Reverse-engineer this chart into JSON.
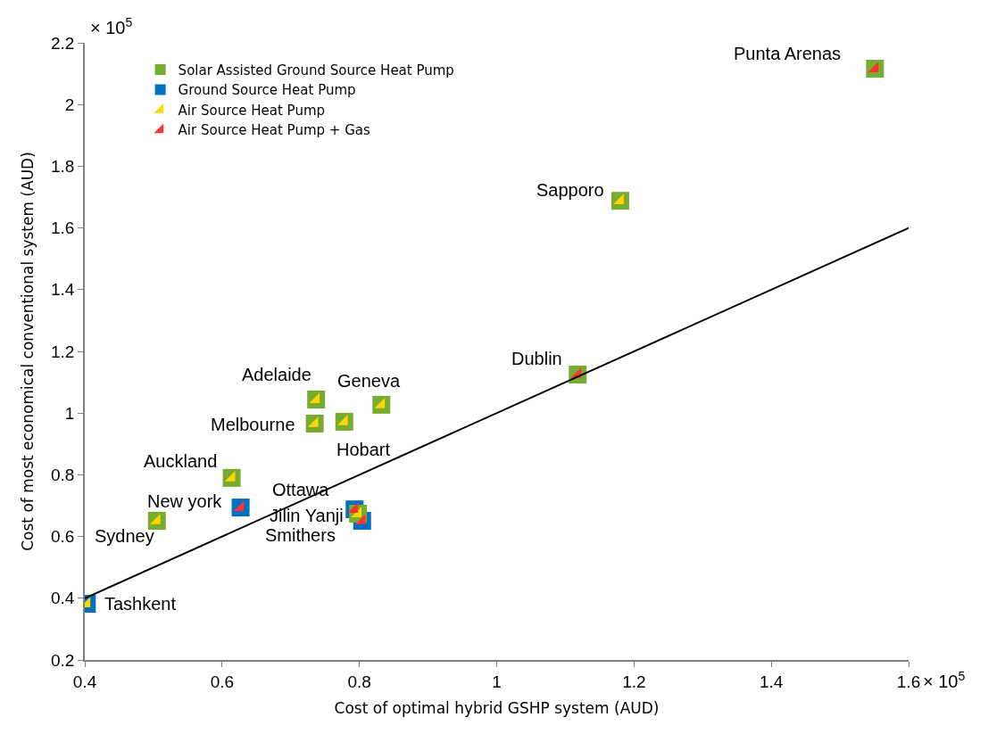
{
  "chart_data": {
    "type": "scatter",
    "xlabel": "Cost of optimal hybrid GSHP system (AUD)",
    "ylabel": "Cost of most economical conventional system (AUD)",
    "xlim": [
      0.4,
      1.6
    ],
    "xticks": [
      0.4,
      0.6,
      0.8,
      1,
      1.2,
      1.4,
      1.6
    ],
    "ylim": [
      0.2,
      2.2
    ],
    "yticks": [
      0.2,
      0.4,
      0.6,
      0.8,
      1,
      1.2,
      1.4,
      1.6,
      1.8,
      2,
      2.2
    ],
    "grid": false,
    "legend": "top left",
    "series": [
      {
        "name": "Solar Assisted Ground Source Heat Pump",
        "marker": "square",
        "color": "#76ac30",
        "x": [
          1.551,
          1.18,
          1.118,
          0.737,
          0.832,
          0.735,
          0.778,
          0.614,
          0.798,
          0.505
        ],
        "values": [
          2.116,
          1.688,
          1.125,
          1.044,
          1.027,
          0.966,
          0.972,
          0.79,
          0.674,
          0.651
        ]
      },
      {
        "name": "Ground Source Heat Pump",
        "marker": "square",
        "color": "#0070c0",
        "x": [
          0.403,
          0.627,
          0.793,
          0.804
        ],
        "values": [
          0.382,
          0.694,
          0.688,
          0.651
        ]
      },
      {
        "name": "Air Source Heat Pump",
        "marker": "triangle",
        "color": "#ffd700",
        "x": [
          1.18,
          0.737,
          0.832,
          0.735,
          0.778,
          0.614,
          0.798,
          0.505,
          0.403
        ],
        "values": [
          1.688,
          1.044,
          1.027,
          0.966,
          0.972,
          0.79,
          0.674,
          0.651,
          0.382
        ]
      },
      {
        "name": "Air Source Heat Pump + Gas",
        "marker": "triangle",
        "color": "#ff3333",
        "x": [
          1.551,
          1.118,
          0.627,
          0.793,
          0.804
        ],
        "values": [
          2.116,
          1.125,
          0.694,
          0.688,
          0.651
        ]
      },
      {
        "type": "line",
        "marker": "none",
        "color": "#000000",
        "x": [
          0.4,
          1.6
        ],
        "values": [
          0.4,
          1.6
        ]
      }
    ],
    "annotations": [
      "× 10$^{5}$",
      "× 10$^{5}$",
      {
        "text": "Punta Arenas",
        "x": 1.551,
        "y": 2.116
      },
      {
        "text": "Sapporo",
        "x": 1.18,
        "y": 1.688
      },
      {
        "text": "Dublin",
        "x": 1.118,
        "y": 1.125
      },
      {
        "text": "Adelaide",
        "x": 0.737,
        "y": 1.044
      },
      {
        "text": "Geneva",
        "x": 0.832,
        "y": 1.027
      },
      {
        "text": "Melbourne",
        "x": 0.735,
        "y": 0.966
      },
      {
        "text": "Hobart",
        "x": 0.778,
        "y": 0.972
      },
      {
        "text": "Auckland",
        "x": 0.614,
        "y": 0.79
      },
      {
        "text": "New york",
        "x": 0.627,
        "y": 0.694
      },
      {
        "text": "Ottawa",
        "x": 0.793,
        "y": 0.688
      },
      {
        "text": "Jilin Yanji",
        "x": 0.798,
        "y": 0.674
      },
      {
        "text": "Smithers",
        "x": 0.804,
        "y": 0.651
      },
      {
        "text": "Sydney",
        "x": 0.505,
        "y": 0.651
      },
      {
        "text": "Tashkent",
        "x": 0.403,
        "y": 0.382
      }
    ]
  }
}
